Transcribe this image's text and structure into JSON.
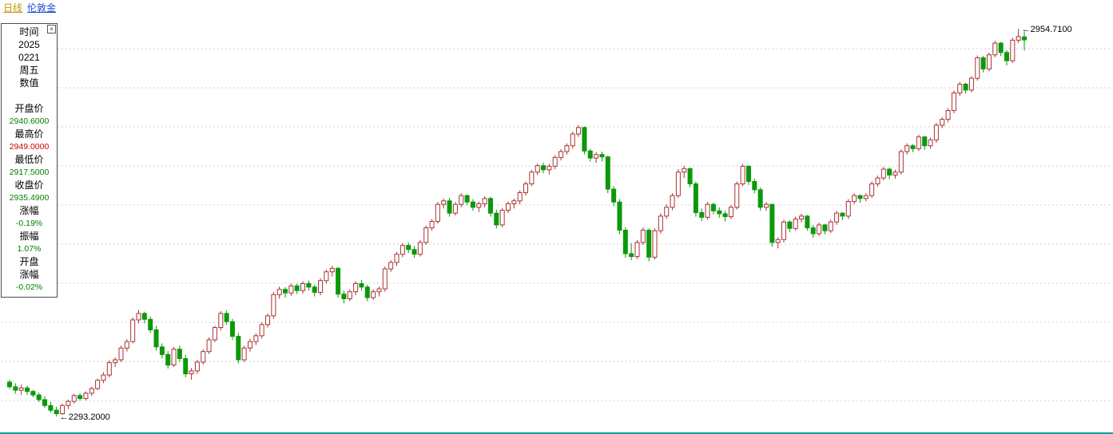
{
  "header": {
    "period": "日线",
    "symbol": "伦敦金"
  },
  "panel": {
    "time_label": "时间",
    "year": "2025",
    "date": "0221",
    "weekday": "周五",
    "values_label": "数值",
    "open_label": "开盘价",
    "open_value": "2940.6000",
    "high_label": "最高价",
    "high_value": "2949.0000",
    "low_label": "最低价",
    "low_value": "2917.5000",
    "close_label": "收盘价",
    "close_value": "2935.4900",
    "change_label": "涨幅",
    "change_value": "-0.19%",
    "amplitude_label": "振幅",
    "amplitude_value": "1.07%",
    "open_change_label_line1": "开盘",
    "open_change_label_line2": "涨幅",
    "open_change_value": "-0.02%",
    "close_icon": "×"
  },
  "colors": {
    "header_period": "#c39500",
    "header_symbol": "#1d4fd0",
    "value_green": "#008000",
    "value_red": "#cc0000",
    "divider": "#00a0a0",
    "grid": "#cfcfcf",
    "annotation": "#000000"
  },
  "chart_data": {
    "type": "candlestick",
    "title": "伦敦金 日线",
    "xlabel": "",
    "ylabel": "",
    "ylim": [
      2286,
      2962
    ],
    "grid": "horizontal-dashed",
    "legend": "none",
    "up_color": "#aa3333",
    "down_color": "#0b990b",
    "last_candle": {
      "open": 2940.6,
      "high": 2949.0,
      "low": 2917.5,
      "close": 2935.49,
      "change_pct": -0.19,
      "amplitude_pct": 1.07,
      "open_change_pct": -0.02,
      "date": "2025-02-21"
    },
    "annotations": [
      {
        "text": "←2954.7100",
        "candle_index": 172,
        "anchor": "high"
      },
      {
        "text": "←2293.2000",
        "candle_index": 8,
        "anchor": "low"
      }
    ],
    "candles": [
      [
        2352,
        2356,
        2340,
        2344
      ],
      [
        2344,
        2350,
        2332,
        2338
      ],
      [
        2338,
        2348,
        2330,
        2342
      ],
      [
        2342,
        2346,
        2330,
        2336
      ],
      [
        2336,
        2339,
        2326,
        2330
      ],
      [
        2330,
        2334,
        2318,
        2322
      ],
      [
        2322,
        2328,
        2308,
        2312
      ],
      [
        2312,
        2318,
        2300,
        2304
      ],
      [
        2304,
        2310,
        2293.2,
        2298
      ],
      [
        2298,
        2315,
        2296,
        2312
      ],
      [
        2312,
        2322,
        2306,
        2319
      ],
      [
        2319,
        2332,
        2315,
        2329
      ],
      [
        2329,
        2333,
        2320,
        2324
      ],
      [
        2324,
        2336,
        2321,
        2333
      ],
      [
        2333,
        2344,
        2328,
        2341
      ],
      [
        2341,
        2358,
        2338,
        2355
      ],
      [
        2355,
        2369,
        2350,
        2364
      ],
      [
        2364,
        2389,
        2360,
        2385
      ],
      [
        2385,
        2394,
        2378,
        2390
      ],
      [
        2390,
        2414,
        2386,
        2410
      ],
      [
        2410,
        2425,
        2404,
        2421
      ],
      [
        2421,
        2462,
        2418,
        2458
      ],
      [
        2458,
        2475,
        2452,
        2469
      ],
      [
        2469,
        2472,
        2452,
        2459
      ],
      [
        2459,
        2464,
        2436,
        2441
      ],
      [
        2441,
        2448,
        2406,
        2412
      ],
      [
        2412,
        2418,
        2392,
        2399
      ],
      [
        2399,
        2405,
        2375,
        2381
      ],
      [
        2381,
        2412,
        2378,
        2408
      ],
      [
        2408,
        2414,
        2386,
        2392
      ],
      [
        2392,
        2398,
        2360,
        2366
      ],
      [
        2366,
        2376,
        2356,
        2371
      ],
      [
        2371,
        2390,
        2366,
        2386
      ],
      [
        2386,
        2408,
        2382,
        2404
      ],
      [
        2404,
        2428,
        2400,
        2424
      ],
      [
        2424,
        2448,
        2420,
        2445
      ],
      [
        2445,
        2473,
        2440,
        2469
      ],
      [
        2469,
        2474,
        2450,
        2455
      ],
      [
        2455,
        2460,
        2424,
        2430
      ],
      [
        2430,
        2436,
        2384,
        2390
      ],
      [
        2390,
        2414,
        2386,
        2410
      ],
      [
        2410,
        2426,
        2404,
        2421
      ],
      [
        2421,
        2435,
        2415,
        2431
      ],
      [
        2431,
        2454,
        2426,
        2450
      ],
      [
        2450,
        2469,
        2445,
        2465
      ],
      [
        2465,
        2506,
        2460,
        2501
      ],
      [
        2501,
        2515,
        2494,
        2510
      ],
      [
        2510,
        2514,
        2496,
        2504
      ],
      [
        2504,
        2520,
        2499,
        2516
      ],
      [
        2516,
        2520,
        2502,
        2508
      ],
      [
        2508,
        2524,
        2503,
        2520
      ],
      [
        2520,
        2525,
        2508,
        2514
      ],
      [
        2514,
        2518,
        2498,
        2505
      ],
      [
        2505,
        2529,
        2500,
        2525
      ],
      [
        2525,
        2544,
        2520,
        2540
      ],
      [
        2540,
        2550,
        2532,
        2546
      ],
      [
        2546,
        2548,
        2496,
        2502
      ],
      [
        2502,
        2508,
        2486,
        2494
      ],
      [
        2494,
        2510,
        2490,
        2506
      ],
      [
        2506,
        2524,
        2500,
        2520
      ],
      [
        2520,
        2526,
        2508,
        2514
      ],
      [
        2514,
        2518,
        2490,
        2496
      ],
      [
        2496,
        2510,
        2492,
        2506
      ],
      [
        2506,
        2515,
        2498,
        2511
      ],
      [
        2511,
        2549,
        2506,
        2545
      ],
      [
        2545,
        2560,
        2540,
        2556
      ],
      [
        2556,
        2574,
        2550,
        2570
      ],
      [
        2570,
        2589,
        2565,
        2585
      ],
      [
        2585,
        2590,
        2572,
        2578
      ],
      [
        2578,
        2584,
        2564,
        2570
      ],
      [
        2570,
        2594,
        2566,
        2590
      ],
      [
        2590,
        2619,
        2586,
        2615
      ],
      [
        2615,
        2630,
        2610,
        2626
      ],
      [
        2626,
        2659,
        2622,
        2655
      ],
      [
        2655,
        2665,
        2648,
        2661
      ],
      [
        2661,
        2666,
        2634,
        2640
      ],
      [
        2640,
        2659,
        2636,
        2655
      ],
      [
        2655,
        2674,
        2650,
        2670
      ],
      [
        2670,
        2672,
        2654,
        2659
      ],
      [
        2659,
        2664,
        2644,
        2650
      ],
      [
        2650,
        2660,
        2642,
        2656
      ],
      [
        2656,
        2669,
        2650,
        2665
      ],
      [
        2665,
        2668,
        2634,
        2640
      ],
      [
        2640,
        2646,
        2614,
        2620
      ],
      [
        2620,
        2649,
        2616,
        2645
      ],
      [
        2645,
        2660,
        2640,
        2656
      ],
      [
        2656,
        2665,
        2648,
        2661
      ],
      [
        2661,
        2679,
        2655,
        2675
      ],
      [
        2675,
        2694,
        2670,
        2690
      ],
      [
        2690,
        2714,
        2686,
        2710
      ],
      [
        2710,
        2725,
        2705,
        2721
      ],
      [
        2721,
        2726,
        2708,
        2714
      ],
      [
        2714,
        2724,
        2706,
        2720
      ],
      [
        2720,
        2739,
        2715,
        2735
      ],
      [
        2735,
        2749,
        2730,
        2745
      ],
      [
        2745,
        2759,
        2740,
        2755
      ],
      [
        2755,
        2779,
        2750,
        2775
      ],
      [
        2775,
        2790,
        2770,
        2786
      ],
      [
        2786,
        2788,
        2740,
        2746
      ],
      [
        2746,
        2750,
        2728,
        2734
      ],
      [
        2734,
        2744,
        2726,
        2740
      ],
      [
        2740,
        2745,
        2728,
        2736
      ],
      [
        2736,
        2738,
        2674,
        2681
      ],
      [
        2681,
        2686,
        2652,
        2659
      ],
      [
        2659,
        2664,
        2604,
        2611
      ],
      [
        2611,
        2616,
        2564,
        2571
      ],
      [
        2571,
        2589,
        2560,
        2566
      ],
      [
        2566,
        2594,
        2562,
        2590
      ],
      [
        2590,
        2616,
        2586,
        2611
      ],
      [
        2611,
        2614,
        2558,
        2565
      ],
      [
        2565,
        2614,
        2561,
        2610
      ],
      [
        2610,
        2640,
        2605,
        2635
      ],
      [
        2635,
        2655,
        2630,
        2650
      ],
      [
        2650,
        2674,
        2645,
        2670
      ],
      [
        2670,
        2715,
        2666,
        2710
      ],
      [
        2710,
        2721,
        2700,
        2716
      ],
      [
        2716,
        2718,
        2684,
        2690
      ],
      [
        2690,
        2694,
        2634,
        2641
      ],
      [
        2641,
        2648,
        2626,
        2633
      ],
      [
        2633,
        2659,
        2629,
        2655
      ],
      [
        2655,
        2658,
        2638,
        2644
      ],
      [
        2644,
        2650,
        2632,
        2639
      ],
      [
        2639,
        2644,
        2626,
        2634
      ],
      [
        2634,
        2654,
        2630,
        2650
      ],
      [
        2650,
        2694,
        2646,
        2690
      ],
      [
        2690,
        2724,
        2686,
        2720
      ],
      [
        2720,
        2722,
        2688,
        2694
      ],
      [
        2694,
        2699,
        2674,
        2680
      ],
      [
        2680,
        2684,
        2644,
        2650
      ],
      [
        2650,
        2659,
        2644,
        2655
      ],
      [
        2655,
        2656,
        2583,
        2590
      ],
      [
        2590,
        2599,
        2580,
        2595
      ],
      [
        2595,
        2629,
        2590,
        2625
      ],
      [
        2625,
        2628,
        2608,
        2614
      ],
      [
        2614,
        2634,
        2610,
        2630
      ],
      [
        2630,
        2639,
        2624,
        2635
      ],
      [
        2635,
        2637,
        2610,
        2615
      ],
      [
        2615,
        2620,
        2598,
        2605
      ],
      [
        2605,
        2624,
        2601,
        2620
      ],
      [
        2620,
        2622,
        2604,
        2610
      ],
      [
        2610,
        2629,
        2606,
        2625
      ],
      [
        2625,
        2644,
        2620,
        2640
      ],
      [
        2640,
        2642,
        2628,
        2635
      ],
      [
        2635,
        2664,
        2630,
        2660
      ],
      [
        2660,
        2674,
        2655,
        2670
      ],
      [
        2670,
        2672,
        2658,
        2665
      ],
      [
        2665,
        2674,
        2660,
        2670
      ],
      [
        2670,
        2694,
        2666,
        2690
      ],
      [
        2690,
        2704,
        2685,
        2700
      ],
      [
        2700,
        2719,
        2696,
        2715
      ],
      [
        2715,
        2718,
        2698,
        2705
      ],
      [
        2705,
        2714,
        2699,
        2710
      ],
      [
        2710,
        2749,
        2706,
        2745
      ],
      [
        2745,
        2759,
        2740,
        2755
      ],
      [
        2755,
        2758,
        2744,
        2750
      ],
      [
        2750,
        2774,
        2746,
        2770
      ],
      [
        2770,
        2772,
        2748,
        2755
      ],
      [
        2755,
        2769,
        2750,
        2765
      ],
      [
        2765,
        2794,
        2760,
        2790
      ],
      [
        2790,
        2804,
        2785,
        2800
      ],
      [
        2800,
        2819,
        2795,
        2815
      ],
      [
        2815,
        2849,
        2810,
        2845
      ],
      [
        2845,
        2864,
        2840,
        2860
      ],
      [
        2860,
        2862,
        2844,
        2850
      ],
      [
        2850,
        2874,
        2846,
        2870
      ],
      [
        2870,
        2909,
        2866,
        2905
      ],
      [
        2905,
        2908,
        2880,
        2886
      ],
      [
        2886,
        2914,
        2882,
        2910
      ],
      [
        2910,
        2934,
        2906,
        2930
      ],
      [
        2930,
        2932,
        2908,
        2914
      ],
      [
        2914,
        2918,
        2892,
        2900
      ],
      [
        2900,
        2939,
        2896,
        2935
      ],
      [
        2935,
        2954.71,
        2930,
        2941
      ],
      [
        2940.6,
        2949,
        2917.5,
        2935.49
      ]
    ]
  }
}
